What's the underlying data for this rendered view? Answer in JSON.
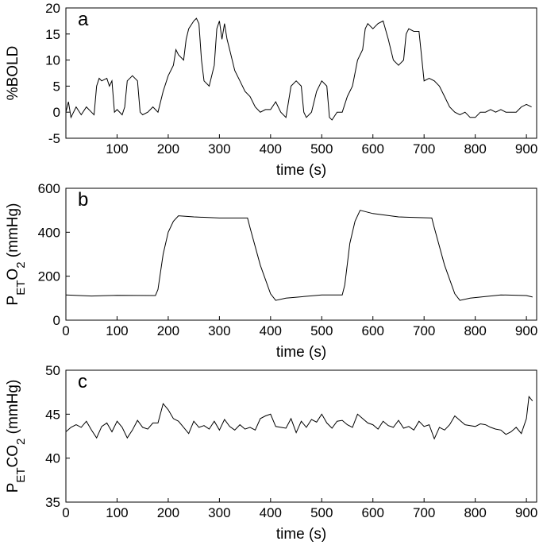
{
  "chart_data": [
    {
      "type": "line",
      "label": "a",
      "xlabel": "time (s)",
      "ylabel": [
        {
          "text": "%BOLD"
        }
      ],
      "xlim": [
        0,
        920
      ],
      "ylim": [
        -5,
        20
      ],
      "xticks": [
        100,
        200,
        300,
        400,
        500,
        600,
        700,
        800,
        900
      ],
      "yticks": [
        -5,
        0,
        5,
        10,
        15,
        20
      ],
      "color": "#000000",
      "x": [
        0,
        5,
        10,
        20,
        30,
        40,
        50,
        55,
        60,
        65,
        70,
        80,
        85,
        90,
        95,
        100,
        110,
        115,
        120,
        130,
        140,
        145,
        150,
        160,
        170,
        180,
        190,
        200,
        210,
        215,
        220,
        230,
        235,
        240,
        250,
        255,
        260,
        265,
        270,
        280,
        290,
        295,
        300,
        305,
        310,
        315,
        320,
        330,
        340,
        350,
        360,
        370,
        380,
        390,
        400,
        410,
        420,
        430,
        440,
        450,
        460,
        465,
        470,
        480,
        490,
        500,
        510,
        515,
        520,
        530,
        540,
        550,
        560,
        570,
        580,
        585,
        590,
        600,
        610,
        620,
        630,
        640,
        650,
        660,
        665,
        670,
        680,
        690,
        700,
        710,
        720,
        730,
        740,
        750,
        760,
        770,
        780,
        790,
        800,
        810,
        820,
        830,
        840,
        850,
        860,
        870,
        880,
        890,
        900,
        910
      ],
      "values": [
        0,
        2,
        -1,
        1,
        -0.5,
        1,
        0,
        -0.5,
        5,
        6.5,
        6,
        6.5,
        5,
        6,
        0,
        0.5,
        -0.5,
        1,
        6,
        7,
        6,
        0,
        -0.5,
        0,
        1,
        0,
        4,
        7,
        9,
        12,
        11,
        10,
        14,
        16,
        17.5,
        18,
        17,
        10,
        6,
        5,
        9,
        16,
        17.5,
        14,
        17,
        14,
        12,
        8,
        6,
        4,
        3,
        1,
        0,
        0.5,
        0.5,
        2,
        0,
        -1,
        5,
        6,
        5,
        0,
        -1,
        0,
        4,
        6,
        5,
        -1,
        -1.5,
        0,
        0,
        3,
        5,
        10,
        12,
        16,
        17,
        16,
        17,
        17.5,
        14,
        10,
        9,
        10,
        15,
        16,
        15.5,
        15.5,
        6,
        6.5,
        6,
        5,
        3,
        1,
        0,
        -0.5,
        0,
        -1,
        -1,
        0,
        0,
        0.5,
        0,
        0.5,
        0,
        0,
        0,
        1,
        1.5,
        1
      ]
    },
    {
      "type": "line",
      "label": "b",
      "xlabel": "time (s)",
      "ylabel": [
        {
          "text": "P"
        },
        {
          "text": "ET",
          "sub": true
        },
        {
          "text": "O"
        },
        {
          "text": "2",
          "sub": true
        },
        {
          "text": " (mmHg)"
        }
      ],
      "xlim": [
        0,
        920
      ],
      "ylim": [
        0,
        600
      ],
      "xticks": [
        0,
        100,
        200,
        300,
        400,
        500,
        600,
        700,
        800,
        900
      ],
      "yticks": [
        0,
        200,
        400,
        600
      ],
      "color": "#000000",
      "x": [
        0,
        50,
        100,
        175,
        180,
        190,
        200,
        210,
        220,
        250,
        300,
        355,
        360,
        380,
        400,
        410,
        430,
        500,
        540,
        545,
        555,
        565,
        575,
        600,
        650,
        715,
        720,
        740,
        760,
        770,
        790,
        850,
        900,
        912
      ],
      "values": [
        115,
        110,
        113,
        112,
        140,
        300,
        400,
        450,
        475,
        470,
        465,
        465,
        420,
        250,
        120,
        90,
        100,
        115,
        115,
        160,
        350,
        450,
        500,
        485,
        470,
        465,
        420,
        250,
        120,
        90,
        100,
        115,
        112,
        105
      ]
    },
    {
      "type": "line",
      "label": "c",
      "xlabel": "time (s)",
      "ylabel": [
        {
          "text": "P"
        },
        {
          "text": "ET",
          "sub": true
        },
        {
          "text": "CO"
        },
        {
          "text": "2",
          "sub": true
        },
        {
          "text": " (mmHg)"
        }
      ],
      "xlim": [
        0,
        920
      ],
      "ylim": [
        35,
        50
      ],
      "xticks": [
        0,
        100,
        200,
        300,
        400,
        500,
        600,
        700,
        800,
        900
      ],
      "yticks": [
        35,
        40,
        45,
        50
      ],
      "color": "#000000",
      "x": [
        0,
        10,
        20,
        30,
        40,
        50,
        60,
        70,
        80,
        90,
        100,
        110,
        120,
        130,
        140,
        150,
        160,
        170,
        180,
        190,
        200,
        210,
        220,
        230,
        240,
        250,
        260,
        270,
        280,
        290,
        300,
        310,
        320,
        330,
        340,
        350,
        360,
        370,
        380,
        390,
        400,
        410,
        420,
        430,
        440,
        450,
        460,
        470,
        480,
        490,
        500,
        510,
        520,
        530,
        540,
        550,
        560,
        570,
        580,
        590,
        600,
        610,
        620,
        630,
        640,
        650,
        660,
        670,
        680,
        690,
        700,
        710,
        720,
        730,
        740,
        750,
        760,
        770,
        780,
        790,
        800,
        810,
        820,
        830,
        840,
        850,
        860,
        870,
        880,
        890,
        900,
        905,
        912
      ],
      "values": [
        43,
        43.5,
        43.8,
        43.5,
        44.2,
        43.2,
        42.3,
        43.6,
        44,
        43,
        44.2,
        43.5,
        42.3,
        43.2,
        44.3,
        43.5,
        43.3,
        44,
        44,
        46.2,
        45.5,
        44.5,
        44.2,
        43.5,
        42.8,
        44.2,
        43.5,
        43.7,
        43.3,
        44.2,
        43.2,
        44.4,
        43.6,
        43.2,
        43.8,
        43.3,
        43.5,
        43.2,
        44.5,
        44.8,
        45,
        43.6,
        43.5,
        43.4,
        44.5,
        42.9,
        44.2,
        43.5,
        44.4,
        44.1,
        45,
        44,
        43.4,
        44.2,
        44.3,
        43.8,
        43.5,
        45,
        44.5,
        44,
        43.8,
        43.3,
        44.2,
        43.7,
        43.5,
        44.3,
        43.4,
        43.6,
        43.2,
        44.2,
        43.6,
        43.8,
        42.2,
        43.5,
        43.2,
        43.8,
        44.8,
        44.3,
        43.8,
        43.7,
        43.6,
        43.9,
        43.8,
        43.5,
        43.3,
        43.2,
        42.7,
        43,
        43.5,
        42.8,
        44.5,
        47,
        46.5
      ]
    }
  ]
}
